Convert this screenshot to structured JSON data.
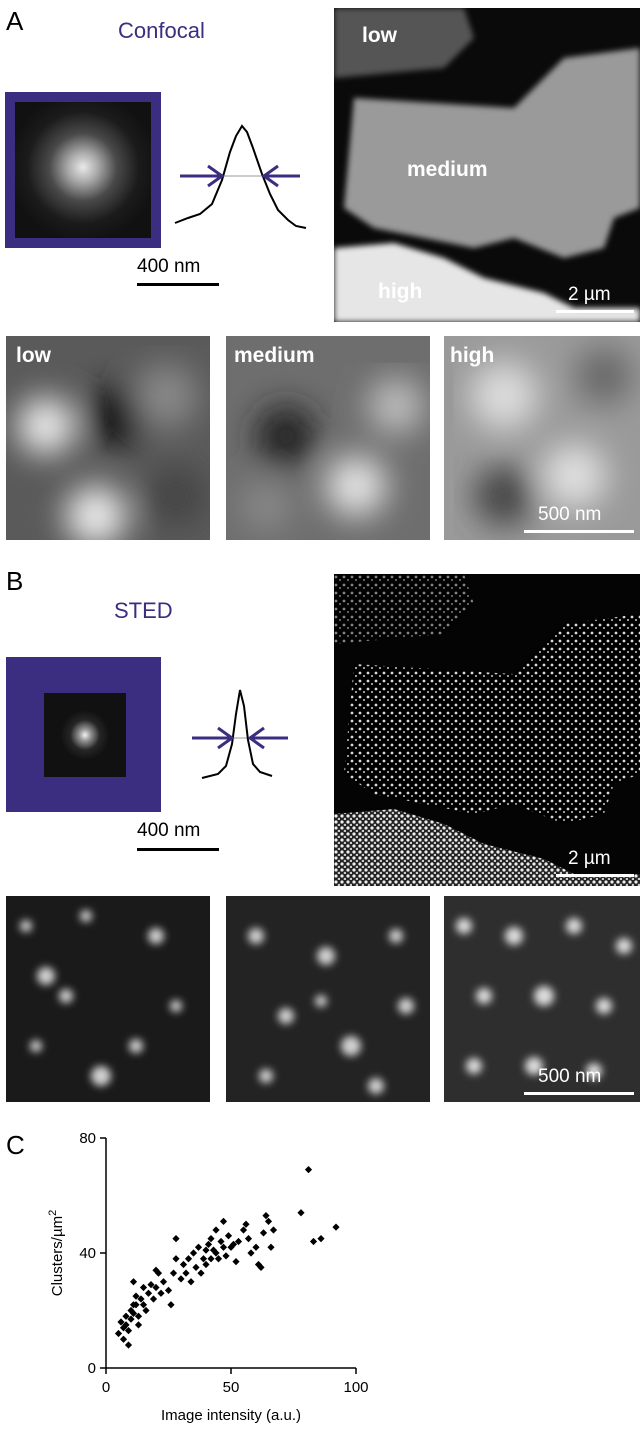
{
  "panel_a": {
    "letter": "A",
    "mode": "Confocal",
    "psf_scale": "400 nm",
    "overview_labels": {
      "low": "low",
      "medium": "medium",
      "high": "high"
    },
    "overview_scale": "2 µm",
    "zoom_labels": [
      "low",
      "medium",
      "high"
    ],
    "zoom_scale": "500 nm"
  },
  "panel_b": {
    "letter": "B",
    "mode": "STED",
    "psf_scale": "400 nm",
    "overview_scale": "2 µm",
    "zoom_scale": "500 nm"
  },
  "panel_c": {
    "letter": "C"
  },
  "colors": {
    "frame": "#3b2d80",
    "arrow": "#3b2d80"
  },
  "chart_data": {
    "type": "scatter",
    "xlabel": "Image intensity (a.u.)",
    "ylabel": "Clusters/µm²",
    "ylabel_main": "Clusters/µm",
    "ylabel_sup": "2",
    "xlim": [
      0,
      100
    ],
    "ylim": [
      0,
      80
    ],
    "xticks": [
      0,
      50,
      100
    ],
    "yticks": [
      0,
      40,
      80
    ],
    "points": [
      [
        5,
        12
      ],
      [
        6,
        16
      ],
      [
        7,
        14
      ],
      [
        7,
        10
      ],
      [
        8,
        18
      ],
      [
        8,
        15
      ],
      [
        9,
        13
      ],
      [
        9,
        8
      ],
      [
        10,
        20
      ],
      [
        10,
        17
      ],
      [
        11,
        22
      ],
      [
        11,
        19
      ],
      [
        11,
        30
      ],
      [
        12,
        25
      ],
      [
        12,
        22
      ],
      [
        13,
        18
      ],
      [
        13,
        15
      ],
      [
        14,
        24
      ],
      [
        15,
        22
      ],
      [
        15,
        28
      ],
      [
        16,
        20
      ],
      [
        17,
        26
      ],
      [
        18,
        29
      ],
      [
        19,
        24
      ],
      [
        20,
        28
      ],
      [
        20,
        34
      ],
      [
        21,
        33
      ],
      [
        22,
        26
      ],
      [
        23,
        30
      ],
      [
        25,
        27
      ],
      [
        26,
        22
      ],
      [
        27,
        33
      ],
      [
        28,
        38
      ],
      [
        28,
        45
      ],
      [
        30,
        31
      ],
      [
        31,
        36
      ],
      [
        32,
        33
      ],
      [
        33,
        38
      ],
      [
        34,
        30
      ],
      [
        35,
        40
      ],
      [
        36,
        35
      ],
      [
        37,
        42
      ],
      [
        38,
        33
      ],
      [
        39,
        38
      ],
      [
        40,
        41
      ],
      [
        40,
        36
      ],
      [
        41,
        43
      ],
      [
        42,
        38
      ],
      [
        42,
        45
      ],
      [
        43,
        41
      ],
      [
        44,
        40
      ],
      [
        44,
        48
      ],
      [
        45,
        38
      ],
      [
        46,
        44
      ],
      [
        47,
        42
      ],
      [
        47,
        51
      ],
      [
        48,
        39
      ],
      [
        49,
        46
      ],
      [
        50,
        42
      ],
      [
        51,
        43
      ],
      [
        52,
        37
      ],
      [
        53,
        44
      ],
      [
        55,
        48
      ],
      [
        56,
        50
      ],
      [
        57,
        45
      ],
      [
        58,
        40
      ],
      [
        60,
        42
      ],
      [
        61,
        36
      ],
      [
        62,
        35
      ],
      [
        63,
        47
      ],
      [
        64,
        53
      ],
      [
        65,
        51
      ],
      [
        66,
        42
      ],
      [
        67,
        48
      ],
      [
        78,
        54
      ],
      [
        81,
        69
      ],
      [
        83,
        44
      ],
      [
        86,
        45
      ],
      [
        92,
        49
      ]
    ]
  }
}
